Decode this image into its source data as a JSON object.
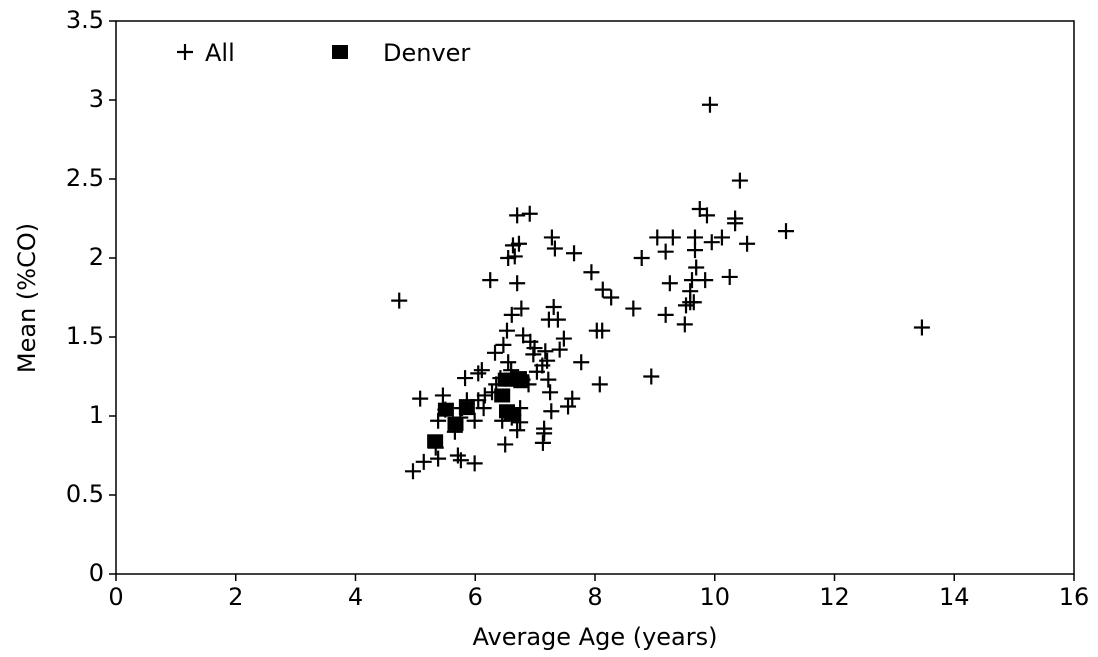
{
  "chart_data": {
    "type": "scatter",
    "xlabel": "Average Age (years)",
    "ylabel": "Mean (%CO)",
    "xlim": [
      0,
      16
    ],
    "ylim": [
      0,
      3.5
    ],
    "xticks": [
      0,
      2,
      4,
      6,
      8,
      10,
      12,
      14,
      16
    ],
    "yticks": [
      0,
      0.5,
      1,
      1.5,
      2,
      2.5,
      3,
      3.5
    ],
    "legend": "top-left",
    "series": [
      {
        "name": "All",
        "color": "#000000",
        "marker": "plus",
        "x": [
          4.73,
          9.92,
          10.42,
          13.46,
          11.19,
          10.54,
          10.25,
          10.34,
          10.34,
          9.75,
          9.87,
          9.95,
          10.12,
          9.67,
          9.67,
          9.69,
          9.62,
          9.84,
          9.59,
          9.59,
          9.65,
          9.52,
          9.5,
          9.04,
          9.3,
          9.18,
          9.25,
          9.18,
          8.94,
          8.78,
          8.64,
          8.27,
          8.13,
          7.94,
          7.65,
          8.03,
          8.12,
          8.08,
          7.77,
          7.55,
          7.62,
          7.28,
          7.33,
          7.31,
          7.23,
          7.38,
          7.48,
          7.41,
          7.17,
          7.2,
          7.12,
          7.22,
          7.25,
          7.27,
          7.15,
          7.15,
          7.13,
          6.91,
          6.7,
          6.73,
          6.63,
          6.66,
          6.55,
          6.7,
          6.77,
          6.61,
          6.8,
          6.92,
          6.99,
          6.97,
          7.03,
          6.79,
          6.89,
          6.53,
          6.47,
          6.33,
          6.55,
          6.6,
          6.42,
          6.35,
          6.28,
          6.25,
          6.11,
          6.05,
          6.16,
          6.14,
          6.05,
          5.99,
          5.83,
          5.86,
          5.78,
          5.75,
          5.66,
          5.71,
          5.76,
          5.99,
          5.46,
          5.5,
          5.38,
          5.34,
          5.14,
          5.38,
          4.96,
          5.08,
          6.5,
          6.7,
          6.75,
          6.61,
          6.45,
          6.75
        ],
        "values": [
          1.73,
          2.97,
          2.49,
          1.56,
          2.17,
          2.09,
          1.88,
          2.25,
          2.22,
          2.31,
          2.27,
          2.1,
          2.13,
          2.13,
          2.05,
          1.94,
          1.86,
          1.86,
          1.79,
          1.72,
          1.72,
          1.7,
          1.58,
          2.13,
          2.13,
          2.04,
          1.84,
          1.64,
          1.25,
          2.0,
          1.68,
          1.75,
          1.8,
          1.91,
          2.03,
          1.54,
          1.54,
          1.2,
          1.34,
          1.06,
          1.11,
          2.13,
          2.06,
          1.69,
          1.61,
          1.61,
          1.49,
          1.42,
          1.41,
          1.35,
          1.32,
          1.23,
          1.15,
          1.03,
          0.92,
          0.89,
          0.83,
          2.28,
          2.27,
          2.09,
          2.08,
          2.01,
          2.0,
          1.84,
          1.68,
          1.64,
          1.51,
          1.47,
          1.43,
          1.39,
          1.28,
          1.23,
          1.2,
          1.54,
          1.45,
          1.4,
          1.34,
          1.29,
          1.24,
          1.2,
          1.15,
          1.86,
          1.29,
          1.27,
          1.13,
          1.05,
          1.1,
          0.97,
          1.24,
          1.1,
          1.05,
          0.99,
          0.9,
          0.75,
          0.72,
          0.7,
          1.13,
          1.04,
          0.97,
          0.8,
          0.71,
          0.73,
          0.65,
          1.11,
          0.82,
          0.91,
          0.96,
          0.99,
          0.97,
          1.05
        ]
      },
      {
        "name": "Denver",
        "color": "#000000",
        "marker": "square",
        "x": [
          5.33,
          5.51,
          5.67,
          5.86,
          6.45,
          6.53,
          6.61,
          6.61,
          6.73,
          6.77,
          6.51
        ],
        "values": [
          0.84,
          1.04,
          0.95,
          1.05,
          1.13,
          1.03,
          1.01,
          1.23,
          1.24,
          1.22,
          1.23
        ]
      }
    ]
  }
}
